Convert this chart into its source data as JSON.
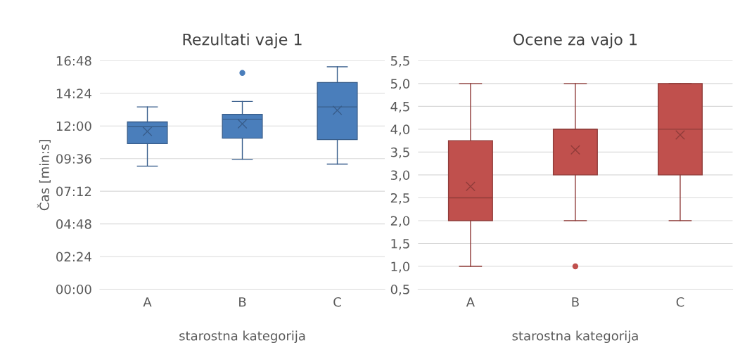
{
  "chart_data": [
    {
      "type": "box",
      "title": "Rezultati vaje 1",
      "xlabel": "starostna kategorija",
      "ylabel": "Čas [min:s]",
      "categories": [
        "A",
        "B",
        "C"
      ],
      "series": [
        {
          "color": "#4a7ebb",
          "boxes": [
            {
              "low": 9.05,
              "q1": 10.7,
              "median": 11.95,
              "q3": 12.3,
              "high": 13.4,
              "mean": 11.6
            },
            {
              "low": 9.55,
              "q1": 11.1,
              "median": 12.5,
              "q3": 12.85,
              "high": 13.8,
              "mean": 12.15,
              "outliers": [
                15.9
              ]
            },
            {
              "low": 9.2,
              "q1": 11.0,
              "median": 13.4,
              "q3": 15.2,
              "high": 16.35,
              "mean": 13.15
            }
          ]
        }
      ],
      "ylim": [
        0,
        16.8
      ],
      "yticks": [
        {
          "value": 0,
          "label": "00:00"
        },
        {
          "value": 2.4,
          "label": "02:24"
        },
        {
          "value": 4.8,
          "label": "04:48"
        },
        {
          "value": 7.2,
          "label": "07:12"
        },
        {
          "value": 9.6,
          "label": "09:36"
        },
        {
          "value": 12,
          "label": "12:00"
        },
        {
          "value": 14.4,
          "label": "14:24"
        },
        {
          "value": 16.8,
          "label": "16:48"
        }
      ],
      "grid": "y",
      "marker": "cross"
    },
    {
      "type": "box",
      "title": "Ocene za vajo 1",
      "xlabel": "starostna kategorija",
      "categories": [
        "A",
        "B",
        "C"
      ],
      "series": [
        {
          "color": "#c0504d",
          "boxes": [
            {
              "low": 1,
              "q1": 2,
              "median": 2.5,
              "q3": 3.75,
              "high": 5,
              "mean": 2.75
            },
            {
              "low": 2,
              "q1": 3,
              "median": 4,
              "q3": 4,
              "high": 5,
              "mean": 3.55,
              "outliers": [
                1
              ]
            },
            {
              "low": 2,
              "q1": 3,
              "median": 4,
              "q3": 5,
              "high": 5,
              "mean": 3.875
            }
          ]
        }
      ],
      "ylim": [
        0.5,
        5.5
      ],
      "yticks": [
        {
          "value": 0.5,
          "label": "0,5"
        },
        {
          "value": 1,
          "label": "1,0"
        },
        {
          "value": 1.5,
          "label": "1,5"
        },
        {
          "value": 2,
          "label": "2,0"
        },
        {
          "value": 2.5,
          "label": "2,5"
        },
        {
          "value": 3,
          "label": "3,0"
        },
        {
          "value": 3.5,
          "label": "3,5"
        },
        {
          "value": 4,
          "label": "4,0"
        },
        {
          "value": 4.5,
          "label": "4,5"
        },
        {
          "value": 5,
          "label": "5,0"
        },
        {
          "value": 5.5,
          "label": "5,5"
        }
      ],
      "grid": "y",
      "marker": "cross"
    }
  ]
}
